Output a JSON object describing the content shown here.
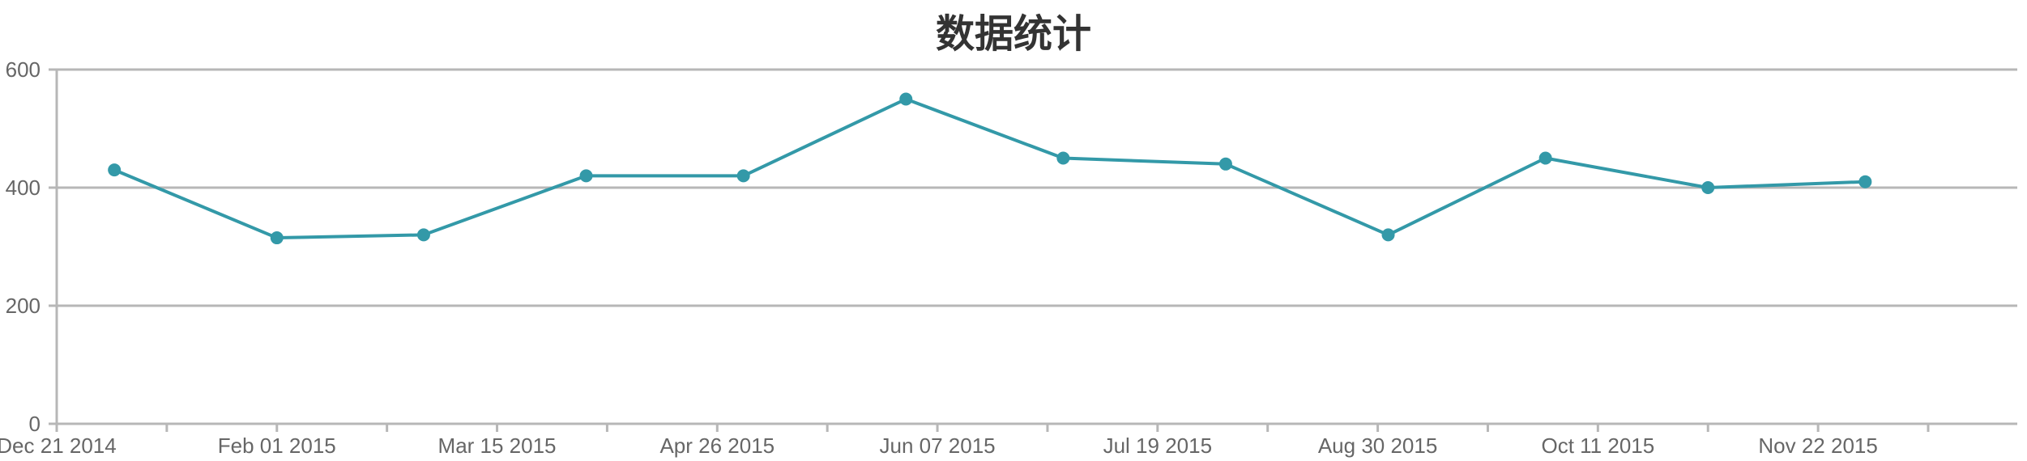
{
  "chart_data": {
    "type": "line",
    "title": "数据统计",
    "xlabel": "",
    "ylabel": "",
    "x_ticks": [
      "Dec 21 2014",
      "Feb 01 2015",
      "Mar 15 2015",
      "Apr 26 2015",
      "Jun 07 2015",
      "Jul 19 2015",
      "Aug 30 2015",
      "Oct 11 2015",
      "Nov 22 2015"
    ],
    "x_tick_dates": [
      "2014-12-21",
      "2015-02-01",
      "2015-03-15",
      "2015-04-26",
      "2015-06-07",
      "2015-07-19",
      "2015-08-30",
      "2015-10-11",
      "2015-11-22"
    ],
    "xlim": [
      "2014-12-21",
      "2015-12-30"
    ],
    "y_ticks": [
      0,
      200,
      400,
      600
    ],
    "ylim": [
      0,
      600
    ],
    "grid": true,
    "series": [
      {
        "color": "#3399a8",
        "points": [
          {
            "x": "2015-01-01",
            "y": 430
          },
          {
            "x": "2015-02-01",
            "y": 315
          },
          {
            "x": "2015-03-01",
            "y": 320
          },
          {
            "x": "2015-04-01",
            "y": 420
          },
          {
            "x": "2015-05-01",
            "y": 420
          },
          {
            "x": "2015-06-01",
            "y": 550
          },
          {
            "x": "2015-07-01",
            "y": 450
          },
          {
            "x": "2015-08-01",
            "y": 440
          },
          {
            "x": "2015-09-01",
            "y": 320
          },
          {
            "x": "2015-10-01",
            "y": 450
          },
          {
            "x": "2015-11-01",
            "y": 400
          },
          {
            "x": "2015-12-01",
            "y": 410
          }
        ]
      }
    ]
  }
}
